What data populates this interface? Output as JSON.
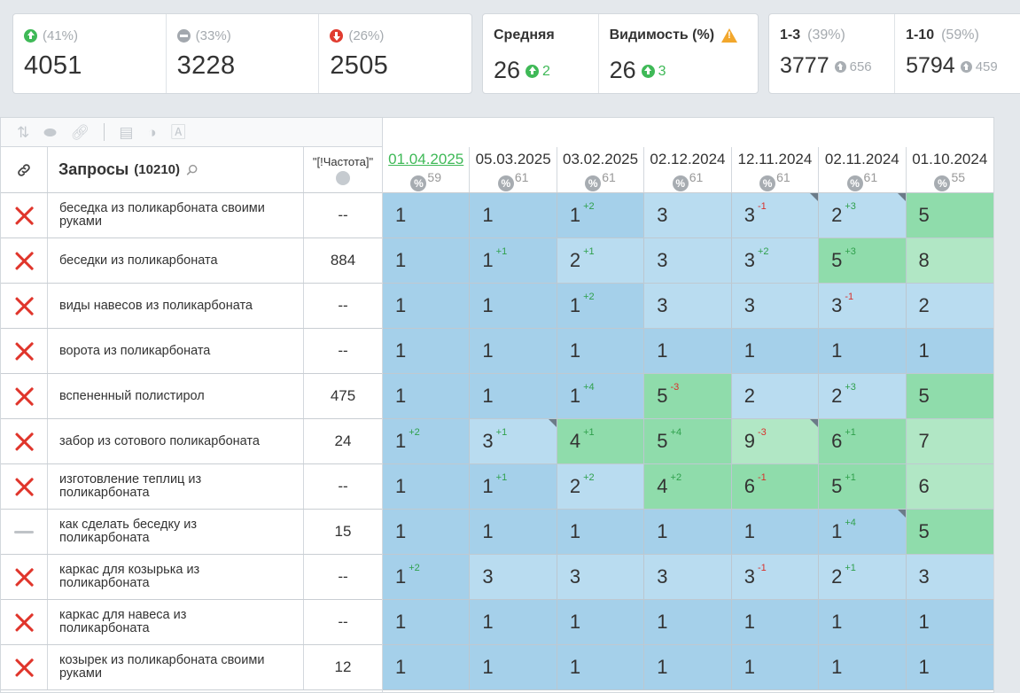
{
  "summary": {
    "group1": [
      {
        "icon": "up",
        "pct": "(41%)",
        "value": "4051"
      },
      {
        "icon": "flat",
        "pct": "(33%)",
        "value": "3228"
      },
      {
        "icon": "down",
        "pct": "(26%)",
        "value": "2505"
      }
    ],
    "avg": {
      "label": "Средняя",
      "value": "26",
      "delta": "2"
    },
    "visibility": {
      "label": "Видимость (%)",
      "value": "26",
      "delta": "3"
    },
    "top3": {
      "label": "1-3",
      "pct": "(39%)",
      "value": "3777",
      "delta": "656"
    },
    "top10": {
      "label": "1-10",
      "pct": "(59%)",
      "value": "5794",
      "delta": "459"
    }
  },
  "table": {
    "queries_title": "Запросы",
    "queries_count": "(10210)",
    "freq_title": "\"[!Частота]\"",
    "dates": [
      {
        "date": "01.04.2025",
        "num": "59",
        "active": true
      },
      {
        "date": "05.03.2025",
        "num": "61",
        "active": false
      },
      {
        "date": "03.02.2025",
        "num": "61",
        "active": false
      },
      {
        "date": "02.12.2024",
        "num": "61",
        "active": false
      },
      {
        "date": "12.11.2024",
        "num": "61",
        "active": false
      },
      {
        "date": "02.11.2024",
        "num": "61",
        "active": false
      },
      {
        "date": "01.10.2024",
        "num": "55",
        "active": false
      }
    ],
    "rows": [
      {
        "status": "x",
        "query": "беседка из поликарбоната своими руками",
        "freq": "--",
        "cells": [
          {
            "v": "1",
            "c": "b1"
          },
          {
            "v": "1",
            "c": "b1"
          },
          {
            "v": "1",
            "c": "b1",
            "d": "+2",
            "dt": "up"
          },
          {
            "v": "3",
            "c": "b2"
          },
          {
            "v": "3",
            "c": "b2",
            "d": "-1",
            "dt": "down",
            "corner": true
          },
          {
            "v": "2",
            "c": "b2",
            "d": "+3",
            "dt": "up",
            "corner": true
          },
          {
            "v": "5",
            "c": "g1"
          }
        ]
      },
      {
        "status": "x",
        "query": "беседки из поликарбоната",
        "freq": "884",
        "cells": [
          {
            "v": "1",
            "c": "b1"
          },
          {
            "v": "1",
            "c": "b1",
            "d": "+1",
            "dt": "up"
          },
          {
            "v": "2",
            "c": "b2",
            "d": "+1",
            "dt": "up"
          },
          {
            "v": "3",
            "c": "b2"
          },
          {
            "v": "3",
            "c": "b2",
            "d": "+2",
            "dt": "up"
          },
          {
            "v": "5",
            "c": "g1",
            "d": "+3",
            "dt": "up"
          },
          {
            "v": "8",
            "c": "g2"
          }
        ]
      },
      {
        "status": "x",
        "query": "виды навесов из поликарбоната",
        "freq": "--",
        "cells": [
          {
            "v": "1",
            "c": "b1"
          },
          {
            "v": "1",
            "c": "b1"
          },
          {
            "v": "1",
            "c": "b1",
            "d": "+2",
            "dt": "up"
          },
          {
            "v": "3",
            "c": "b2"
          },
          {
            "v": "3",
            "c": "b2"
          },
          {
            "v": "3",
            "c": "b2",
            "d": "-1",
            "dt": "down"
          },
          {
            "v": "2",
            "c": "b2"
          }
        ]
      },
      {
        "status": "x",
        "query": "ворота из поликарбоната",
        "freq": "--",
        "cells": [
          {
            "v": "1",
            "c": "b1"
          },
          {
            "v": "1",
            "c": "b1"
          },
          {
            "v": "1",
            "c": "b1"
          },
          {
            "v": "1",
            "c": "b1"
          },
          {
            "v": "1",
            "c": "b1"
          },
          {
            "v": "1",
            "c": "b1"
          },
          {
            "v": "1",
            "c": "b1"
          }
        ]
      },
      {
        "status": "x",
        "query": "вспененный полистирол",
        "freq": "475",
        "cells": [
          {
            "v": "1",
            "c": "b1"
          },
          {
            "v": "1",
            "c": "b1"
          },
          {
            "v": "1",
            "c": "b1",
            "d": "+4",
            "dt": "up"
          },
          {
            "v": "5",
            "c": "g1",
            "d": "-3",
            "dt": "down"
          },
          {
            "v": "2",
            "c": "b2"
          },
          {
            "v": "2",
            "c": "b2",
            "d": "+3",
            "dt": "up"
          },
          {
            "v": "5",
            "c": "g1"
          }
        ]
      },
      {
        "status": "x",
        "query": "забор из сотового поликарбоната",
        "freq": "24",
        "cells": [
          {
            "v": "1",
            "c": "b1",
            "d": "+2",
            "dt": "up"
          },
          {
            "v": "3",
            "c": "b2",
            "d": "+1",
            "dt": "up",
            "corner": true
          },
          {
            "v": "4",
            "c": "g1",
            "d": "+1",
            "dt": "up"
          },
          {
            "v": "5",
            "c": "g1",
            "d": "+4",
            "dt": "up"
          },
          {
            "v": "9",
            "c": "g2",
            "d": "-3",
            "dt": "down",
            "corner": true
          },
          {
            "v": "6",
            "c": "g1",
            "d": "+1",
            "dt": "up"
          },
          {
            "v": "7",
            "c": "g2"
          }
        ]
      },
      {
        "status": "x",
        "query": "изготовление теплиц из поликарбоната",
        "freq": "--",
        "cells": [
          {
            "v": "1",
            "c": "b1"
          },
          {
            "v": "1",
            "c": "b1",
            "d": "+1",
            "dt": "up"
          },
          {
            "v": "2",
            "c": "b2",
            "d": "+2",
            "dt": "up"
          },
          {
            "v": "4",
            "c": "g1",
            "d": "+2",
            "dt": "up"
          },
          {
            "v": "6",
            "c": "g1",
            "d": "-1",
            "dt": "down"
          },
          {
            "v": "5",
            "c": "g1",
            "d": "+1",
            "dt": "up"
          },
          {
            "v": "6",
            "c": "g2"
          }
        ]
      },
      {
        "status": "dash",
        "query": "как сделать беседку из поликарбоната",
        "freq": "15",
        "cells": [
          {
            "v": "1",
            "c": "b1"
          },
          {
            "v": "1",
            "c": "b1"
          },
          {
            "v": "1",
            "c": "b1"
          },
          {
            "v": "1",
            "c": "b1"
          },
          {
            "v": "1",
            "c": "b1"
          },
          {
            "v": "1",
            "c": "b1",
            "d": "+4",
            "dt": "up",
            "corner": true
          },
          {
            "v": "5",
            "c": "g1"
          }
        ]
      },
      {
        "status": "x",
        "query": "каркас для козырька из поликарбоната",
        "freq": "--",
        "cells": [
          {
            "v": "1",
            "c": "b1",
            "d": "+2",
            "dt": "up"
          },
          {
            "v": "3",
            "c": "b2"
          },
          {
            "v": "3",
            "c": "b2"
          },
          {
            "v": "3",
            "c": "b2"
          },
          {
            "v": "3",
            "c": "b2",
            "d": "-1",
            "dt": "down"
          },
          {
            "v": "2",
            "c": "b2",
            "d": "+1",
            "dt": "up"
          },
          {
            "v": "3",
            "c": "b2"
          }
        ]
      },
      {
        "status": "x",
        "query": "каркас для навеса из поликарбоната",
        "freq": "--",
        "cells": [
          {
            "v": "1",
            "c": "b1"
          },
          {
            "v": "1",
            "c": "b1"
          },
          {
            "v": "1",
            "c": "b1"
          },
          {
            "v": "1",
            "c": "b1"
          },
          {
            "v": "1",
            "c": "b1"
          },
          {
            "v": "1",
            "c": "b1"
          },
          {
            "v": "1",
            "c": "b1"
          }
        ]
      },
      {
        "status": "x",
        "query": "козырек из поликарбоната своими руками",
        "freq": "12",
        "cells": [
          {
            "v": "1",
            "c": "b1"
          },
          {
            "v": "1",
            "c": "b1"
          },
          {
            "v": "1",
            "c": "b1"
          },
          {
            "v": "1",
            "c": "b1"
          },
          {
            "v": "1",
            "c": "b1"
          },
          {
            "v": "1",
            "c": "b1"
          },
          {
            "v": "1",
            "c": "b1"
          }
        ]
      }
    ]
  },
  "icons": {
    "sort": "sort-icon",
    "toggle": "toggle-icon",
    "link": "link-icon",
    "calendar": "calendar-icon",
    "contrast": "contrast-icon",
    "font": "font-icon",
    "chain": "chain-icon",
    "search": "search-icon",
    "globe": "globe-icon"
  }
}
